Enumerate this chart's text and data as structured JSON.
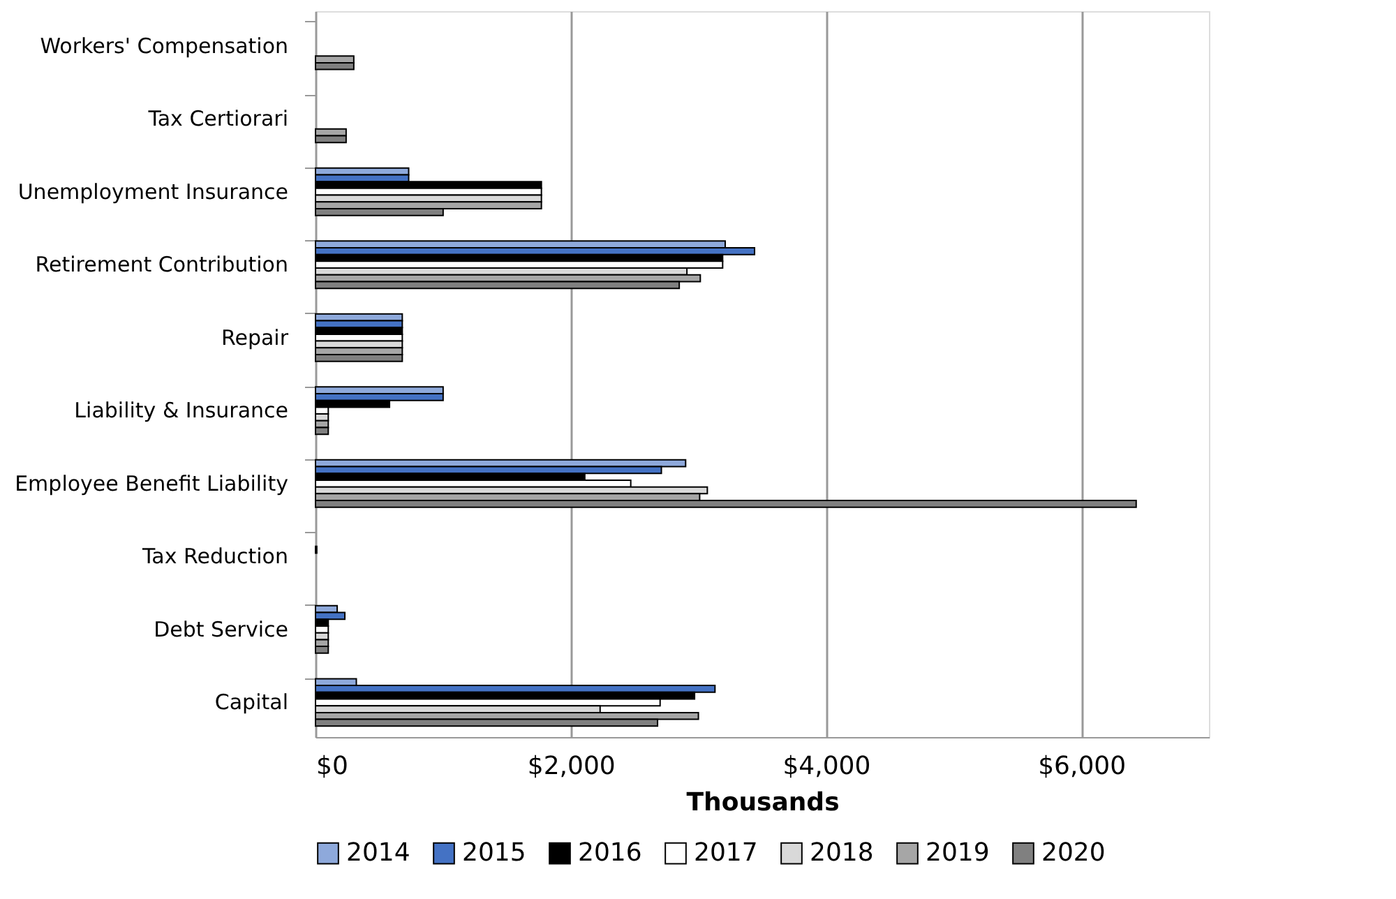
{
  "chart_data": {
    "type": "bar",
    "orientation": "horizontal",
    "xlabel": "Thousands",
    "categories": [
      "Workers' Compensation",
      "Tax Certiorari",
      "Unemployment Insurance",
      "Retirement Contribution",
      "Repair",
      "Liability & Insurance",
      "Employee Benefit Liability",
      "Tax Reduction",
      "Debt Service",
      "Capital"
    ],
    "series": [
      {
        "name": "2014",
        "color": "#8ea9db",
        "values": [
          null,
          null,
          730,
          3210,
          680,
          1000,
          2900,
          null,
          170,
          320
        ]
      },
      {
        "name": "2015",
        "color": "#4472c4",
        "values": [
          null,
          null,
          730,
          3440,
          680,
          1000,
          2710,
          null,
          230,
          3130
        ]
      },
      {
        "name": "2016",
        "color": "#000000",
        "values": [
          null,
          null,
          1770,
          3190,
          680,
          580,
          2110,
          10,
          100,
          2970
        ]
      },
      {
        "name": "2017",
        "color": "#ffffff",
        "values": [
          null,
          null,
          1770,
          3190,
          680,
          100,
          2470,
          null,
          100,
          2700
        ]
      },
      {
        "name": "2018",
        "color": "#d9d9d9",
        "values": [
          null,
          null,
          1770,
          2910,
          680,
          100,
          3070,
          null,
          100,
          2230
        ]
      },
      {
        "name": "2019",
        "color": "#a6a6a6",
        "values": [
          300,
          240,
          1770,
          3015,
          680,
          100,
          3010,
          null,
          100,
          3000
        ]
      },
      {
        "name": "2020",
        "color": "#808080",
        "values": [
          300,
          240,
          1000,
          2850,
          680,
          100,
          6430,
          null,
          100,
          2680
        ]
      }
    ],
    "xlim": [
      0,
      7000
    ],
    "xticks": [
      {
        "value": 0,
        "label": "$0"
      },
      {
        "value": 2000,
        "label": "$2,000"
      },
      {
        "value": 4000,
        "label": "$4,000"
      },
      {
        "value": 6000,
        "label": "$6,000"
      }
    ],
    "grid": "x",
    "legend": "bottom"
  }
}
